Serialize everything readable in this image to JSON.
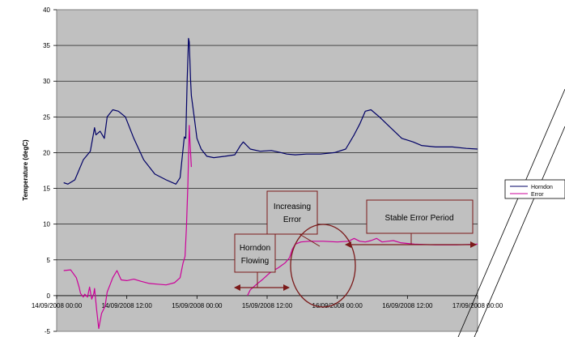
{
  "chart_data": {
    "type": "line",
    "ylabel": "Temperature (degC)",
    "ylim": [
      -5,
      40
    ],
    "y_ticks": [
      "40",
      "35",
      "30",
      "25",
      "20",
      "15",
      "10",
      "5",
      "0",
      "-5"
    ],
    "x_ticks": [
      "14/09/2008 00:00",
      "14/09/2008 12:00",
      "15/09/2008 00:00",
      "15/09/2008 12:00",
      "16/09/2008 00:00",
      "16/09/2008 12:00",
      "17/09/2008 00:00"
    ],
    "xlim_days": [
      0,
      3
    ],
    "grid": "horizontal",
    "background": "#c0c0c0",
    "legend_position": "right",
    "series": [
      {
        "name": "Horndon",
        "color": "#000066",
        "x_days": [
          0.05,
          0.08,
          0.13,
          0.19,
          0.24,
          0.27,
          0.28,
          0.31,
          0.34,
          0.36,
          0.4,
          0.44,
          0.49,
          0.55,
          0.62,
          0.7,
          0.78,
          0.85,
          0.88,
          0.91,
          0.92,
          0.93,
          0.94,
          0.945,
          0.955,
          0.96,
          0.98,
          1.0,
          1.03,
          1.07,
          1.12,
          1.2,
          1.27,
          1.31,
          1.33,
          1.38,
          1.45,
          1.53,
          1.6,
          1.64,
          1.7,
          1.78,
          1.88,
          1.98,
          2.06,
          2.12,
          2.16,
          2.2,
          2.24,
          2.3,
          2.38,
          2.46,
          2.54,
          2.6,
          2.7,
          2.82,
          2.92,
          3.0
        ],
        "values": [
          15.8,
          15.6,
          16.2,
          19.0,
          20.2,
          23.5,
          22.5,
          23.0,
          22.0,
          25.0,
          26.0,
          25.8,
          25.0,
          22.0,
          19.0,
          17.0,
          16.2,
          15.6,
          16.5,
          22.2,
          22.0,
          30.0,
          36.0,
          35.5,
          30.0,
          28.0,
          25.0,
          22.0,
          20.5,
          19.5,
          19.3,
          19.5,
          19.7,
          21.0,
          21.5,
          20.5,
          20.2,
          20.3,
          20.0,
          19.8,
          19.7,
          19.8,
          19.8,
          20.0,
          20.5,
          22.5,
          24.0,
          25.8,
          26.0,
          25.0,
          23.5,
          22.0,
          21.5,
          21.0,
          20.8,
          20.8,
          20.6,
          20.5
        ]
      },
      {
        "name": "Error",
        "color": "#cc0099",
        "x_days": [
          0.05,
          0.1,
          0.14,
          0.16,
          0.17,
          0.19,
          0.2,
          0.22,
          0.235,
          0.25,
          0.265,
          0.27,
          0.285,
          0.3,
          0.32,
          0.345,
          0.36,
          0.38,
          0.4,
          0.43,
          0.46,
          0.5,
          0.55,
          0.6,
          0.66,
          0.72,
          0.78,
          0.84,
          0.88,
          0.9,
          0.915,
          0.925,
          0.935,
          0.945,
          0.95,
          0.96
        ],
        "values": [
          3.5,
          3.6,
          2.5,
          1.2,
          0.3,
          -0.2,
          0.2,
          -0.2,
          1.2,
          -0.5,
          0.3,
          1.0,
          -2.0,
          -4.6,
          -2.5,
          -1.5,
          0.5,
          1.5,
          2.5,
          3.5,
          2.2,
          2.1,
          2.3,
          2.0,
          1.7,
          1.6,
          1.5,
          1.8,
          2.5,
          4.5,
          5.5,
          9.5,
          15.5,
          23.8,
          21.5,
          18.0
        ]
      },
      {
        "name": "",
        "color": "#cc0099",
        "x_days": [
          1.36,
          1.38,
          1.42,
          1.47,
          1.52,
          1.58,
          1.63,
          1.66,
          1.68,
          1.7,
          1.74,
          1.8,
          1.9,
          2.0,
          2.08,
          2.12,
          2.16,
          2.2,
          2.24,
          2.28,
          2.32,
          2.36,
          2.4,
          2.45,
          2.55,
          2.7,
          2.85,
          3.0
        ],
        "values": [
          0.0,
          0.8,
          1.5,
          2.3,
          3.2,
          3.9,
          4.6,
          5.3,
          6.5,
          7.2,
          7.5,
          7.6,
          7.6,
          7.5,
          7.6,
          8.0,
          7.6,
          7.5,
          7.7,
          8.0,
          7.5,
          7.6,
          7.7,
          7.4,
          7.2,
          7.1,
          7.1,
          7.2
        ]
      }
    ],
    "annotations": [
      {
        "lines": [
          "Horndon",
          "Flowing"
        ]
      },
      {
        "lines": [
          "Increasing",
          "Error"
        ]
      },
      {
        "lines": [
          "Stable Error Period"
        ]
      }
    ],
    "annotation_color": "#7b1a1a"
  }
}
